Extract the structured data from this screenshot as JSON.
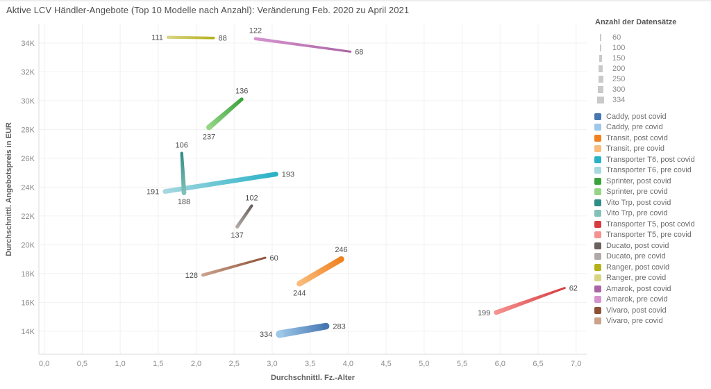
{
  "size_legend": {
    "title": "Anzahl der Datensätze",
    "values": [
      60,
      100,
      150,
      200,
      250,
      300,
      334
    ]
  },
  "chart_data": {
    "type": "scatter",
    "title": "Aktive LCV Händler-Angebote (Top 10 Modelle nach Anzahl): Veränderung Feb. 2020 zu April 2021",
    "xlabel": "Durchschnittl. Fz.-Alter",
    "ylabel": "Durchschnittl. Angebotspreis in EUR",
    "xlim": [
      -0.07,
      7.14
    ],
    "ylim": [
      12400,
      35300
    ],
    "grid": true,
    "legend_position": "right",
    "size_encoding": "Anzahl der Datensätze",
    "x_ticks": {
      "values": [
        0,
        0.5,
        1,
        1.5,
        2,
        2.5,
        3,
        3.5,
        4,
        4.5,
        5,
        5.5,
        6,
        6.5,
        7
      ],
      "labels": [
        "0,0",
        "0,5",
        "1,0",
        "1,5",
        "2,0",
        "2,5",
        "3,0",
        "3,5",
        "4,0",
        "4,5",
        "5,0",
        "5,5",
        "6,0",
        "6,5",
        "7,0"
      ]
    },
    "y_ticks": {
      "values": [
        14000,
        16000,
        18000,
        20000,
        22000,
        24000,
        26000,
        28000,
        30000,
        32000,
        34000
      ],
      "labels": [
        "14K",
        "16K",
        "18K",
        "20K",
        "22K",
        "24K",
        "26K",
        "28K",
        "30K",
        "32K",
        "34K"
      ]
    },
    "series": [
      {
        "name": "Caddy",
        "pre": {
          "x": 3.1,
          "y": 13800,
          "count": 334,
          "label_pos": "left",
          "color": "#9ec7e8"
        },
        "post": {
          "x": 3.71,
          "y": 14350,
          "count": 283,
          "label_pos": "right",
          "color": "#4677b2"
        }
      },
      {
        "name": "Transit",
        "pre": {
          "x": 3.36,
          "y": 17300,
          "count": 244,
          "label_pos": "below",
          "color": "#f9bc7d"
        },
        "post": {
          "x": 3.91,
          "y": 19000,
          "count": 246,
          "label_pos": "above",
          "color": "#f0811f"
        }
      },
      {
        "name": "Transporter T6",
        "pre": {
          "x": 1.59,
          "y": 23700,
          "count": 191,
          "label_pos": "left",
          "color": "#a6d8e0"
        },
        "post": {
          "x": 3.05,
          "y": 24900,
          "count": 193,
          "label_pos": "right",
          "color": "#28b2c6"
        }
      },
      {
        "name": "Sprinter",
        "pre": {
          "x": 2.17,
          "y": 28150,
          "count": 237,
          "label_pos": "below",
          "color": "#95d588"
        },
        "post": {
          "x": 2.6,
          "y": 30100,
          "count": 136,
          "label_pos": "above",
          "color": "#3ba33a"
        }
      },
      {
        "name": "Vito Trp",
        "pre": {
          "x": 1.84,
          "y": 23600,
          "count": 188,
          "label_pos": "below",
          "color": "#83c0b7"
        },
        "post": {
          "x": 1.81,
          "y": 26350,
          "count": 106,
          "label_pos": "above",
          "color": "#2f8d88"
        }
      },
      {
        "name": "Transporter T5",
        "pre": {
          "x": 5.95,
          "y": 15300,
          "count": 199,
          "label_pos": "left",
          "color": "#f59290"
        },
        "post": {
          "x": 6.85,
          "y": 17000,
          "count": 62,
          "label_pos": "right",
          "color": "#d73c3e"
        }
      },
      {
        "name": "Ducato",
        "pre": {
          "x": 2.54,
          "y": 21250,
          "count": 137,
          "label_pos": "below",
          "color": "#b1a9a6"
        },
        "post": {
          "x": 2.73,
          "y": 22700,
          "count": 102,
          "label_pos": "above",
          "color": "#6a615e"
        }
      },
      {
        "name": "Ranger",
        "pre": {
          "x": 1.63,
          "y": 34400,
          "count": 111,
          "label_pos": "left",
          "color": "#d7d584"
        },
        "post": {
          "x": 2.23,
          "y": 34350,
          "count": 88,
          "label_pos": "right",
          "color": "#b4b11d"
        }
      },
      {
        "name": "Amarok",
        "pre": {
          "x": 2.78,
          "y": 34300,
          "count": 122,
          "label_pos": "above",
          "color": "#d693cf"
        },
        "post": {
          "x": 4.03,
          "y": 33400,
          "count": 68,
          "label_pos": "right",
          "color": "#ab65a4"
        }
      },
      {
        "name": "Vivaro",
        "pre": {
          "x": 2.09,
          "y": 17900,
          "count": 128,
          "label_pos": "left",
          "color": "#cba28c"
        },
        "post": {
          "x": 2.91,
          "y": 19100,
          "count": 60,
          "label_pos": "right",
          "color": "#8e5138"
        }
      }
    ],
    "legend": [
      {
        "label": "Caddy, post covid",
        "color": "#4677b2"
      },
      {
        "label": "Caddy, pre covid",
        "color": "#9ec7e8"
      },
      {
        "label": "Transit, post covid",
        "color": "#f0811f"
      },
      {
        "label": "Transit, pre covid",
        "color": "#f9bc7d"
      },
      {
        "label": "Transporter T6, post covid",
        "color": "#28b2c6"
      },
      {
        "label": "Transporter T6, pre covid",
        "color": "#a6d8e0"
      },
      {
        "label": "Sprinter, post covid",
        "color": "#3ba33a"
      },
      {
        "label": "Sprinter, pre covid",
        "color": "#95d588"
      },
      {
        "label": "Vito Trp, post covid",
        "color": "#2f8d88"
      },
      {
        "label": "Vito Trp, pre covid",
        "color": "#83c0b7"
      },
      {
        "label": "Transporter T5, post covid",
        "color": "#d73c3e"
      },
      {
        "label": "Transporter T5, pre covid",
        "color": "#f59290"
      },
      {
        "label": "Ducato, post covid",
        "color": "#6a615e"
      },
      {
        "label": "Ducato, pre covid",
        "color": "#b1a9a6"
      },
      {
        "label": "Ranger, post covid",
        "color": "#b4b11d"
      },
      {
        "label": "Ranger, pre covid",
        "color": "#d7d584"
      },
      {
        "label": "Amarok, post covid",
        "color": "#ab65a4"
      },
      {
        "label": "Amarok, pre covid",
        "color": "#d693cf"
      },
      {
        "label": "Vivaro, post covid",
        "color": "#8e5138"
      },
      {
        "label": "Vivaro, pre covid",
        "color": "#cba28c"
      }
    ],
    "colors": {
      "grid": "#f0f0f0",
      "axis_line": "#d9d9d9",
      "tick_label": "#8a8a8a",
      "axis_label": "#5f5f5f",
      "data_label": "#4d4d4d"
    }
  }
}
